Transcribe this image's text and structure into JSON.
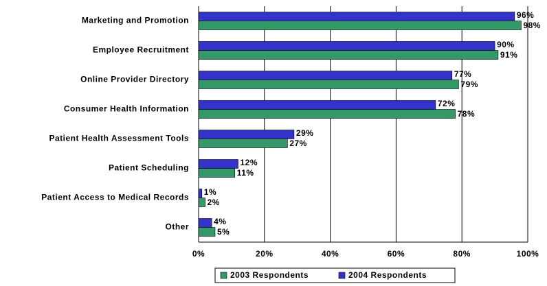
{
  "chart_data": {
    "type": "hbar",
    "categories": [
      "Marketing and Promotion",
      "Employee Recruitment",
      "Online Provider Directory",
      "Consumer Health Information",
      "Patient Health Assessment Tools",
      "Patient Scheduling",
      "Patient Access to Medical Records",
      "Other"
    ],
    "series": [
      {
        "name": "2003 Respondents",
        "color": "#339966",
        "values": [
          98,
          91,
          79,
          78,
          27,
          11,
          2,
          5
        ],
        "value_labels": [
          "98%",
          "91%",
          "79%",
          "78%",
          "27%",
          "11%",
          "2%",
          "5%"
        ]
      },
      {
        "name": "2004 Respondents",
        "color": "#3333cc",
        "values": [
          96,
          90,
          77,
          72,
          29,
          12,
          1,
          4
        ],
        "value_labels": [
          "96%",
          "90%",
          "77%",
          "72%",
          "29%",
          "12%",
          "1%",
          "4%"
        ]
      }
    ],
    "xlim": [
      0,
      100
    ],
    "xticks": [
      {
        "value": 0,
        "label": "0%"
      },
      {
        "value": 20,
        "label": "20%"
      },
      {
        "value": 40,
        "label": "40%"
      },
      {
        "value": 60,
        "label": "60%"
      },
      {
        "value": 80,
        "label": "80%"
      },
      {
        "value": 100,
        "label": "100%"
      }
    ],
    "grid": true,
    "legend": "bottom"
  }
}
